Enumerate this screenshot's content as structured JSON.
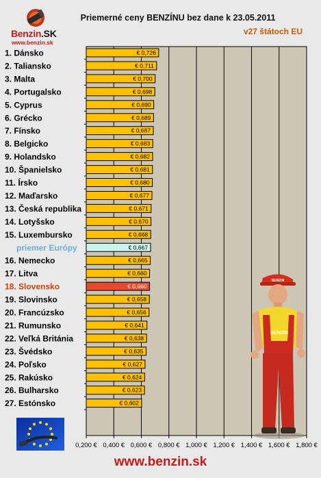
{
  "header": {
    "title": "Priemerné ceny BENZÍNU bez dane k 23.05.2011",
    "subtitle": "v27 štátoch EU"
  },
  "logo": {
    "brand_main": "Benzin",
    "brand_suffix": ".SK",
    "url": "www.benzin.sk"
  },
  "footer": {
    "url": "www.benzin.sk"
  },
  "mascot": {
    "cap_text": "BENZIN",
    "shirt_text": "BENZIN"
  },
  "colors": {
    "bar": "#ffc000",
    "bar_avg": "#ccf2ec",
    "bar_highlight": "#e8492c",
    "plot_bg": "#cdc6b4",
    "avg_label": "#6aaed6",
    "highlight_label": "#c2410c",
    "brand_red": "#c41a1a"
  },
  "chart_data": {
    "type": "bar",
    "orientation": "horizontal",
    "title": "Priemerné ceny BENZÍNU bez dane k 23.05.2011",
    "subtitle": "v27 štátoch EU",
    "categories": [
      "1. Dánsko",
      "2. Taliansko",
      "3. Malta",
      "4. Portugalsko",
      "5. Cyprus",
      "6. Grécko",
      "7. Fínsko",
      "8. Belgicko",
      "9. Holandsko",
      "10. Španielsko",
      "11. Írsko",
      "12. Maďarsko",
      "13. Česká republika",
      "14. Lotyšsko",
      "15. Luxembursko",
      "priemer Európy",
      "16. Nemecko",
      "17. Litva",
      "18. Slovensko",
      "19. Slovinsko",
      "20. Francúzsko",
      "21. Rumunsko",
      "22. Veľká Británia",
      "23. Švédsko",
      "24. Poľsko",
      "25. Rakúsko",
      "26. Bulharsko",
      "27. Estónsko"
    ],
    "values": [
      0.726,
      0.711,
      0.7,
      0.698,
      0.69,
      0.689,
      0.687,
      0.683,
      0.682,
      0.681,
      0.68,
      0.677,
      0.671,
      0.67,
      0.668,
      0.667,
      0.665,
      0.66,
      0.66,
      0.658,
      0.656,
      0.641,
      0.638,
      0.635,
      0.627,
      0.624,
      0.623,
      0.602
    ],
    "value_labels": [
      "€ 0,726",
      "€ 0,711",
      "€ 0,700",
      "€ 0,698",
      "€ 0,690",
      "€ 0,689",
      "€ 0,687",
      "€ 0,683",
      "€ 0,682",
      "€ 0,681",
      "€ 0,680",
      "€ 0,677",
      "€ 0,671",
      "€ 0,670",
      "€ 0,668",
      "€ 0,667",
      "€ 0,665",
      "€ 0,660",
      "€ 0,660",
      "€ 0,658",
      "€ 0,656",
      "€ 0,641",
      "€ 0,638",
      "€ 0,635",
      "€ 0,627",
      "€ 0,624",
      "€ 0,623",
      "€ 0,602"
    ],
    "average_category": "priemer Európy",
    "highlight_category": "18. Slovensko",
    "xlim": [
      0.2,
      1.8
    ],
    "xticks": [
      0.2,
      0.4,
      0.6,
      0.8,
      1.0,
      1.2,
      1.4,
      1.6,
      1.8
    ],
    "xtick_labels": [
      "0,200 €",
      "0,400 €",
      "0,600 €",
      "0,800 €",
      "1,000 €",
      "1,200 €",
      "1,400 €",
      "1,600 €",
      "1,800 €"
    ],
    "grid": "vertical",
    "legend": "none"
  }
}
